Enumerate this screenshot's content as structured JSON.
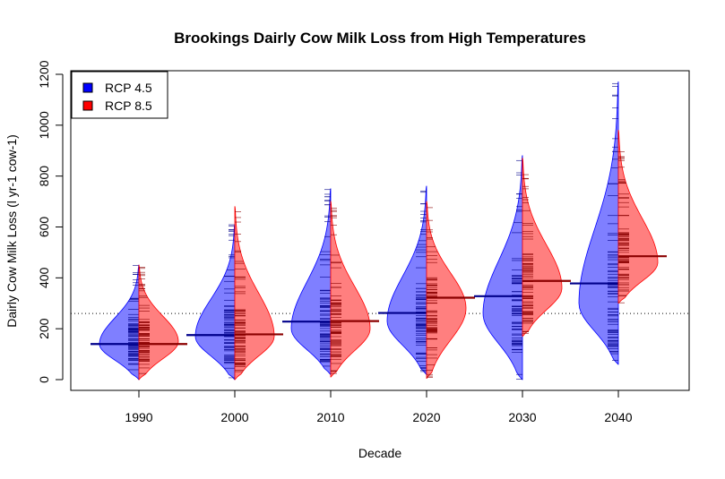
{
  "chart_data": {
    "type": "split-violin (bean plot)",
    "title": "Brookings Dairly Cow Milk Loss from High Temperatures",
    "xlabel": "Decade",
    "ylabel": "Dairly Cow Milk Loss (l yr-1 cow-1)",
    "categories": [
      "1990",
      "2000",
      "2010",
      "2020",
      "2030",
      "2040"
    ],
    "ylim": [
      -40,
      1200
    ],
    "yticks": [
      "0",
      "200",
      "400",
      "600",
      "800",
      "1000",
      "1200"
    ],
    "overall_mean": 260,
    "legend": {
      "position": "top-left"
    },
    "series": [
      {
        "name": "RCP 4.5",
        "color": "#0000ff",
        "means": [
          140,
          175,
          228,
          262,
          328,
          378
        ],
        "ranges": [
          [
            0,
            450
          ],
          [
            0,
            610
          ],
          [
            20,
            750
          ],
          [
            20,
            760
          ],
          [
            0,
            880
          ],
          [
            60,
            1170
          ]
        ],
        "peaks": [
          140,
          170,
          200,
          230,
          260,
          300
        ]
      },
      {
        "name": "RCP 8.5",
        "color": "#ff0000",
        "means": [
          140,
          178,
          230,
          322,
          388,
          485
        ],
        "ranges": [
          [
            0,
            450
          ],
          [
            0,
            680
          ],
          [
            10,
            700
          ],
          [
            5,
            700
          ],
          [
            170,
            870
          ],
          [
            300,
            980
          ]
        ],
        "peaks": [
          150,
          170,
          200,
          280,
          360,
          460
        ]
      }
    ]
  }
}
